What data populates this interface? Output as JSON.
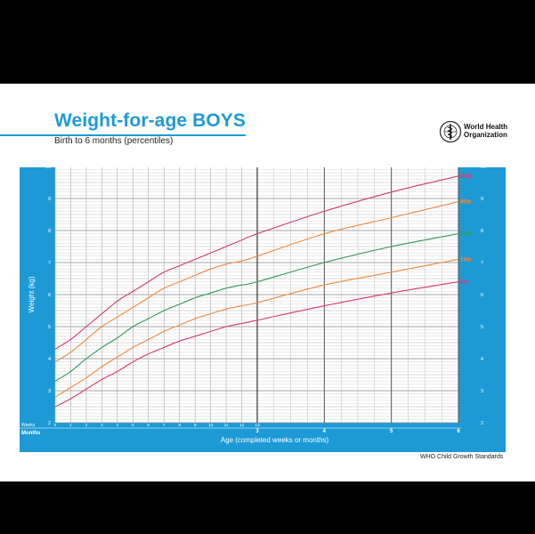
{
  "header": {
    "title": "Weight-for-age BOYS",
    "subtitle": "Birth to 6 months (percentiles)",
    "org_line1": "World Health",
    "org_line2": "Organization"
  },
  "footer": {
    "source": "WHO Child Growth Standards"
  },
  "colors": {
    "frame": "#1d9ad6",
    "p97": "#d63a6c",
    "p85": "#f08a3c",
    "p50": "#2e9a5a",
    "p15": "#f08a3c",
    "p3": "#d63a6c"
  },
  "chart_data": {
    "type": "line",
    "title": "Weight-for-age BOYS",
    "subtitle": "Birth to 6 months (percentiles)",
    "xlabel": "Age (completed weeks or months)",
    "ylabel": "Weight (kg)",
    "ylim": [
      2,
      10
    ],
    "xlim_months": [
      0,
      6
    ],
    "week_axis_label": "Weeks",
    "month_axis_label": "Months",
    "week_ticks": [
      "0",
      "1",
      "2",
      "3",
      "4",
      "5",
      "6",
      "7",
      "8",
      "9",
      "10",
      "11",
      "12",
      "13"
    ],
    "month_ticks": [
      "3",
      "4",
      "5",
      "6"
    ],
    "y_ticks": [
      "2",
      "3",
      "4",
      "5",
      "6",
      "7",
      "8",
      "9",
      "10"
    ],
    "grid": true,
    "x_weeks": [
      0,
      1,
      2,
      3,
      4,
      5,
      6,
      7,
      8,
      9,
      10,
      11,
      12,
      13
    ],
    "x_months": [
      3,
      4,
      5,
      6
    ],
    "series": [
      {
        "name": "97th",
        "color": "#d63a6c",
        "weeks": [
          4.3,
          4.6,
          5.0,
          5.4,
          5.8,
          6.1,
          6.4,
          6.7,
          6.9,
          7.1,
          7.3,
          7.5,
          7.7,
          7.9
        ],
        "months": [
          7.9,
          8.6,
          9.2,
          9.7
        ]
      },
      {
        "name": "85th",
        "color": "#f08a3c",
        "weeks": [
          3.9,
          4.2,
          4.6,
          5.0,
          5.3,
          5.6,
          5.9,
          6.2,
          6.4,
          6.6,
          6.8,
          6.95,
          7.05,
          7.2
        ],
        "months": [
          7.2,
          7.9,
          8.4,
          8.9
        ]
      },
      {
        "name": "50th",
        "color": "#2e9a5a",
        "weeks": [
          3.3,
          3.6,
          4.0,
          4.35,
          4.65,
          5.0,
          5.25,
          5.5,
          5.7,
          5.9,
          6.05,
          6.2,
          6.3,
          6.4
        ],
        "months": [
          6.4,
          7.0,
          7.5,
          7.9
        ]
      },
      {
        "name": "15th",
        "color": "#f08a3c",
        "weeks": [
          2.8,
          3.1,
          3.4,
          3.75,
          4.05,
          4.35,
          4.6,
          4.85,
          5.05,
          5.25,
          5.4,
          5.55,
          5.65,
          5.75
        ],
        "months": [
          5.75,
          6.3,
          6.7,
          7.1
        ]
      },
      {
        "name": "3rd",
        "color": "#d63a6c",
        "weeks": [
          2.5,
          2.75,
          3.05,
          3.35,
          3.6,
          3.9,
          4.15,
          4.35,
          4.55,
          4.7,
          4.85,
          5.0,
          5.1,
          5.2
        ],
        "months": [
          5.2,
          5.65,
          6.05,
          6.4
        ]
      }
    ]
  }
}
